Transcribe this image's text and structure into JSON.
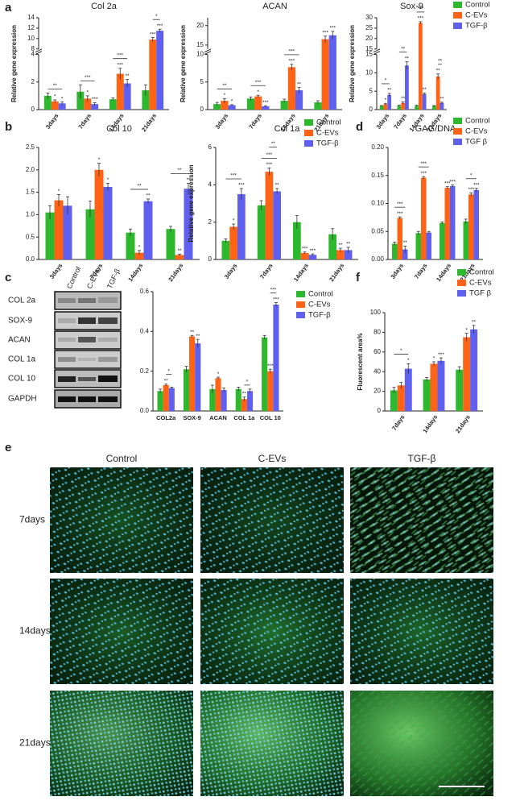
{
  "panel_labels": [
    "a",
    "b",
    "c",
    "d",
    "e",
    "f"
  ],
  "chart_data": [
    {
      "type": "bar",
      "title": "Col 2a",
      "y_label": "Relative gene expression",
      "categories": [
        "3days",
        "7days",
        "14days",
        "21days"
      ],
      "ylim": [
        0,
        14
      ],
      "ybreak": [
        4,
        8
      ],
      "yticks": [
        0,
        2,
        4,
        8,
        10,
        12,
        14
      ],
      "series": [
        {
          "name": "Control",
          "color": "#2db82d",
          "values": [
            1.0,
            1.3,
            0.75,
            1.4
          ],
          "errors": [
            0.2,
            0.5,
            0.1,
            0.4
          ],
          "stars": [
            null,
            null,
            null,
            null
          ]
        },
        {
          "name": "C-EVs",
          "color": "#ff6315",
          "values": [
            0.6,
            0.8,
            2.6,
            9.8
          ],
          "errors": [
            0.1,
            0.2,
            0.4,
            0.4
          ],
          "stars": [
            "*",
            "*",
            "***",
            "***"
          ]
        },
        {
          "name": "TGF-β",
          "color": "#6060f0",
          "values": [
            0.45,
            0.4,
            1.9,
            11.5
          ],
          "errors": [
            0.1,
            0.1,
            0.3,
            0.3
          ],
          "stars": [
            "*",
            "***",
            "**",
            "***"
          ]
        }
      ],
      "brackets": [
        {
          "category": "3days",
          "from": "Control",
          "to": "TGF-β",
          "label": "**"
        },
        {
          "category": "7days",
          "from": "Control",
          "to": "TGF-β",
          "label": "***"
        },
        {
          "category": "14days",
          "from": "Control",
          "to": "TGF-β",
          "label": "***"
        },
        {
          "category": "21days",
          "from": "C-EVs",
          "to": "TGF-β",
          "label": "*"
        }
      ]
    },
    {
      "type": "bar",
      "title": "ACAN",
      "y_label": "Relative gene expression",
      "categories": [
        "3days",
        "7days",
        "14days",
        "21days"
      ],
      "ylim": [
        0,
        22
      ],
      "ybreak": [
        10,
        14
      ],
      "yticks": [
        0,
        5,
        10,
        15,
        20
      ],
      "series": [
        {
          "name": "Control",
          "color": "#2db82d",
          "values": [
            1.0,
            2.0,
            1.6,
            1.3
          ],
          "errors": [
            0.3,
            0.3,
            0.3,
            0.3
          ],
          "stars": [
            null,
            null,
            null,
            null
          ]
        },
        {
          "name": "C-EVs",
          "color": "#ff6315",
          "values": [
            1.6,
            2.4,
            7.7,
            16.5
          ],
          "errors": [
            0.4,
            0.2,
            0.5,
            0.8
          ],
          "stars": [
            "*",
            "*",
            "***",
            "***"
          ]
        },
        {
          "name": "TGF-β",
          "color": "#6060f0",
          "values": [
            0.8,
            0.6,
            3.5,
            17.5
          ],
          "errors": [
            0.1,
            0.1,
            0.5,
            1.0
          ],
          "stars": [
            "*",
            "***",
            "**",
            "***"
          ]
        }
      ],
      "brackets": [
        {
          "category": "3days",
          "from": "Control",
          "to": "TGF-β",
          "label": "**"
        },
        {
          "category": "7days",
          "from": "Control",
          "to": "TGF-β",
          "label": "***"
        },
        {
          "category": "14days",
          "from": "Control",
          "to": "TGF-β",
          "label": "***"
        }
      ]
    },
    {
      "type": "bar",
      "title": "Sox-9",
      "y_label": "Relative gene expression",
      "categories": [
        "3days",
        "7days",
        "14days",
        "21days"
      ],
      "ylim": [
        0,
        30
      ],
      "ybreak": [
        15,
        15
      ],
      "yticks": [
        0,
        5,
        10,
        15,
        20,
        25,
        30
      ],
      "legend": "top-right",
      "series": [
        {
          "name": "Control",
          "color": "#2db82d",
          "values": [
            1,
            1,
            1,
            1
          ],
          "errors": [
            0.1,
            0.2,
            0.2,
            0.1
          ],
          "stars": [
            null,
            null,
            null,
            null
          ]
        },
        {
          "name": "C-EVs",
          "color": "#ff6315",
          "values": [
            1.5,
            1.8,
            27.5,
            9
          ],
          "errors": [
            0.2,
            0.3,
            0.6,
            0.7
          ],
          "stars": [
            "*",
            "**",
            "***",
            "**"
          ]
        },
        {
          "name": "TGF-β",
          "color": "#6060f0",
          "values": [
            4,
            12,
            4.2,
            1.8
          ],
          "errors": [
            0.4,
            1.0,
            0.3,
            0.2
          ],
          "stars": [
            "**",
            "**",
            "**",
            "**"
          ]
        }
      ],
      "brackets": [
        {
          "category": "3days",
          "from": "Control",
          "to": "TGF-β",
          "label": "*"
        },
        {
          "category": "7days",
          "from": "Control",
          "to": "TGF-β",
          "label": "**"
        },
        {
          "category": "14days",
          "from": "Control",
          "to": "TGF-β",
          "label": "***"
        },
        {
          "category": "21days",
          "from": "C-EVs",
          "to": "TGF-β",
          "label": "**"
        }
      ]
    },
    {
      "type": "bar",
      "title": "Col 10",
      "categories": [
        "3days",
        "7days",
        "14days",
        "21days"
      ],
      "ylim": [
        0,
        2.5
      ],
      "yticks": [
        {
          "value": 0,
          "label": "0.0"
        },
        0.5,
        {
          "value": 1,
          "label": "1.0"
        },
        1.5,
        {
          "value": 2,
          "label": "2.0"
        },
        2.5
      ],
      "series": [
        {
          "name": "Control",
          "color": "#2db82d",
          "values": [
            1.05,
            1.12,
            0.6,
            0.68
          ],
          "errors": [
            0.15,
            0.18,
            0.08,
            0.06
          ],
          "stars": [
            null,
            null,
            null,
            null
          ]
        },
        {
          "name": "C-EVs",
          "color": "#ff6315",
          "values": [
            1.32,
            2.0,
            0.15,
            0.1
          ],
          "errors": [
            0.13,
            0.15,
            0.05,
            0.02
          ],
          "stars": [
            "*",
            "*",
            "*",
            "**"
          ]
        },
        {
          "name": "TGF-β",
          "color": "#6060f0",
          "values": [
            1.2,
            1.62,
            1.3,
            1.58
          ],
          "errors": [
            0.2,
            0.08,
            0.05,
            0.12
          ],
          "stars": [
            null,
            "*",
            "**",
            "**"
          ]
        }
      ],
      "brackets": [
        {
          "category": "14days",
          "from": "Control",
          "to": "TGF-β",
          "label": "**"
        },
        {
          "category": "21days",
          "from": "Control",
          "to": "TGF-β",
          "label": "**"
        }
      ]
    },
    {
      "type": "bar",
      "title": "Col 1a",
      "y_label": "Relative gene expression",
      "categories": [
        "3days",
        "7days",
        "14days",
        "21days"
      ],
      "ylim": [
        0,
        6
      ],
      "yticks": [
        0,
        2,
        4,
        6
      ],
      "legend": "top-right",
      "series": [
        {
          "name": "Control",
          "color": "#2db82d",
          "values": [
            1.0,
            2.9,
            2.0,
            1.35
          ],
          "errors": [
            0.1,
            0.25,
            0.35,
            0.3
          ],
          "stars": [
            null,
            null,
            null,
            null
          ]
        },
        {
          "name": "C-EVs",
          "color": "#ff6315",
          "values": [
            1.75,
            4.7,
            0.35,
            0.5
          ],
          "errors": [
            0.15,
            0.2,
            0.05,
            0.1
          ],
          "stars": [
            "*",
            "***",
            "***",
            "**"
          ]
        },
        {
          "name": "TGF-β",
          "color": "#6060f0",
          "values": [
            3.5,
            3.65,
            0.25,
            0.5
          ],
          "errors": [
            0.3,
            0.15,
            0.05,
            0.15
          ],
          "stars": [
            "***",
            "**",
            "***",
            "**"
          ]
        }
      ],
      "brackets": [
        {
          "category": "3days",
          "from": "Control",
          "to": "TGF-β",
          "label": "***"
        },
        {
          "category": "7days",
          "from": "Control",
          "to": "TGF-β",
          "label": "***"
        },
        {
          "category": "7days",
          "from": "C-EVs",
          "to": "TGF-β",
          "label": "**"
        }
      ]
    },
    {
      "type": "bar",
      "title": "GAG/DNA",
      "categories": [
        "3days",
        "7days",
        "14days",
        "21days"
      ],
      "ylim": [
        0,
        0.2
      ],
      "yticks": [
        {
          "value": 0,
          "label": "0.00"
        },
        0.05,
        {
          "value": 0.1,
          "label": "0.10"
        },
        0.15,
        {
          "value": 0.2,
          "label": "0.20"
        }
      ],
      "legend": "top-right",
      "series": [
        {
          "name": "Control",
          "color": "#2db82d",
          "values": [
            0.028,
            0.047,
            0.065,
            0.068
          ],
          "errors": [
            0.003,
            0.003,
            0.002,
            0.004
          ],
          "stars": [
            null,
            null,
            null,
            null
          ]
        },
        {
          "name": "C-EVs",
          "color": "#ff6315",
          "values": [
            0.074,
            0.146,
            0.128,
            0.116
          ],
          "errors": [
            0.002,
            0.002,
            0.002,
            0.003
          ],
          "stars": [
            "***",
            "***",
            "***",
            "***"
          ]
        },
        {
          "name": "TGF β",
          "color": "#6060f0",
          "values": [
            0.018,
            0.048,
            0.131,
            0.124
          ],
          "errors": [
            0.006,
            0.002,
            0.002,
            0.003
          ],
          "stars": [
            "**",
            null,
            "***",
            "***"
          ]
        }
      ],
      "brackets": [
        {
          "category": "3days",
          "from": "Control",
          "to": "TGF β",
          "label": "***"
        },
        {
          "category": "7days",
          "from": "Control",
          "to": "TGF β",
          "label": "***"
        },
        {
          "category": "21days",
          "from": "Control",
          "to": "TGF β",
          "label": "*"
        }
      ]
    },
    {
      "type": "bar",
      "categories": [
        "COL2a",
        "SOX-9",
        "ACAN",
        "COL 1a",
        "COL 10"
      ],
      "ylim": [
        0,
        0.6
      ],
      "yticks": [
        {
          "value": 0,
          "label": "0.0"
        },
        0.2,
        0.4,
        0.6
      ],
      "legend": "top-right",
      "series": [
        {
          "name": "Control",
          "color": "#2db82d",
          "values": [
            0.1,
            0.21,
            0.11,
            0.11,
            0.37
          ],
          "errors": [
            0.01,
            0.015,
            0.02,
            0.01,
            0.01
          ],
          "stars": [
            null,
            null,
            null,
            null,
            null
          ]
        },
        {
          "name": "C-EVs",
          "color": "#ff6315",
          "values": [
            0.13,
            0.375,
            0.165,
            0.06,
            0.2
          ],
          "errors": [
            0.005,
            0.005,
            0.005,
            0.01,
            0.01
          ],
          "stars": [
            "**",
            "**",
            "*",
            "**",
            "***"
          ]
        },
        {
          "name": "TGF-β",
          "color": "#6060f0",
          "values": [
            0.115,
            0.34,
            0.105,
            0.1,
            0.535
          ],
          "errors": [
            0.005,
            0.02,
            0.01,
            0.01,
            0.01
          ],
          "stars": [
            null,
            "**",
            null,
            null,
            "***"
          ]
        }
      ],
      "brackets": [
        {
          "category": "COL2a",
          "from": "C-EVs",
          "to": "TGF-β",
          "label": "*"
        },
        {
          "category": "COL 1a",
          "from": "C-EVs",
          "to": "TGF-β",
          "label": "*"
        },
        {
          "category": "COL 10",
          "from": "C-EVs",
          "to": "TGF-β",
          "label": "***"
        }
      ]
    },
    {
      "type": "bar",
      "y_label": "Fluorescent area%",
      "categories": [
        "7days",
        "14days",
        "21days"
      ],
      "ylim": [
        0,
        100
      ],
      "yticks": [
        0,
        20,
        40,
        60,
        80,
        100
      ],
      "legend": "top-right",
      "series": [
        {
          "name": "Control",
          "color": "#2db82d",
          "values": [
            21,
            32,
            42
          ],
          "errors": [
            3,
            2,
            3
          ],
          "stars": [
            null,
            null,
            null
          ]
        },
        {
          "name": "C-EVs",
          "color": "#ff6315",
          "values": [
            26,
            48,
            75
          ],
          "errors": [
            3,
            2,
            4
          ],
          "stars": [
            null,
            "*",
            "*"
          ]
        },
        {
          "name": "TGF β",
          "color": "#6060f0",
          "values": [
            43,
            51,
            83
          ],
          "errors": [
            5,
            3,
            4
          ],
          "stars": [
            "*",
            "***",
            "**"
          ]
        }
      ],
      "brackets": [
        {
          "category": "7days",
          "from": "Control",
          "to": "TGF β",
          "label": "*"
        }
      ]
    }
  ],
  "blot": {
    "lanes": [
      "Control",
      "C-EVs",
      "TGF-β"
    ],
    "proteins": [
      "COL 2a",
      "SOX-9",
      "ACAN",
      "COL 1a",
      "COL 10",
      "GAPDH"
    ]
  },
  "images": {
    "columns": [
      "Control",
      "C-EVs",
      "TGF-β"
    ],
    "rows": [
      "7days",
      "14days",
      "21days"
    ]
  }
}
